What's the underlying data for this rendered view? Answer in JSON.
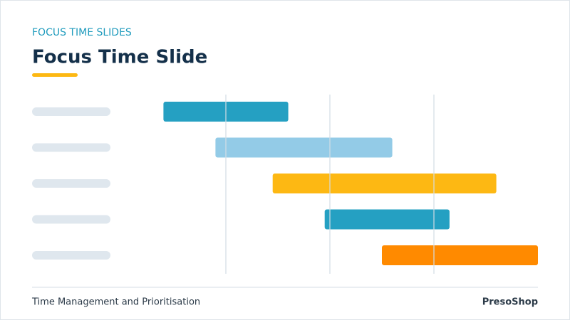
{
  "header": {
    "eyebrow": "FOCUS TIME SLIDES",
    "title": "Focus Time Slide"
  },
  "chart_data": {
    "type": "gantt",
    "starts": [
      0.4,
      0.9,
      1.45,
      1.95,
      2.5
    ],
    "ends": [
      1.6,
      2.6,
      3.6,
      3.15,
      4.0
    ],
    "colors": [
      "#25a0c2",
      "#93cbe7",
      "#fdb813",
      "#25a0c2",
      "#ff8a00"
    ],
    "xlim": [
      0,
      4
    ],
    "xticks": [
      1,
      2,
      3
    ],
    "grid": true
  },
  "footer": {
    "left": "Time Management and Prioritisation",
    "right": "PresoShop"
  }
}
